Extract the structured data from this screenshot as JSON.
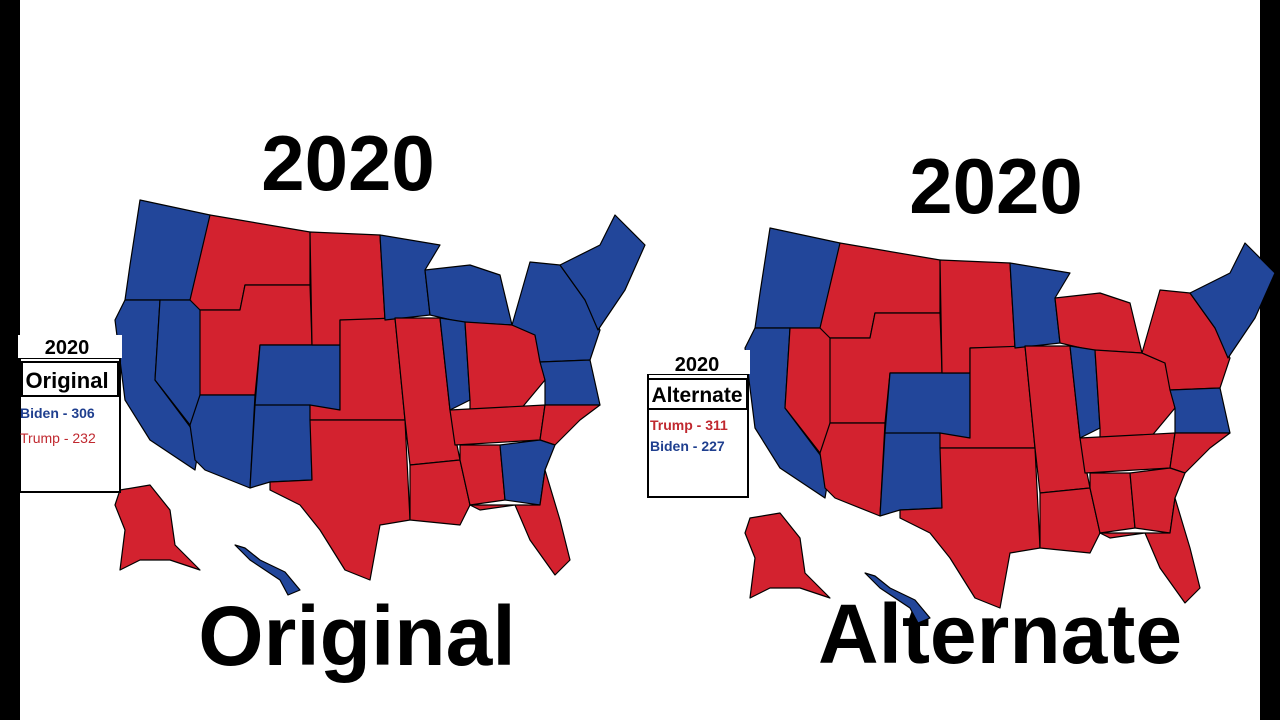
{
  "left": {
    "title": "2020",
    "caption": "Original",
    "legend": {
      "year": "2020",
      "name": "Original",
      "lines": [
        "Biden - 306",
        "Trump - 232"
      ]
    }
  },
  "right": {
    "title": "2020",
    "caption": "Alternate",
    "legend": {
      "year": "2020",
      "name": "Alternate",
      "lines": [
        "Trump - 311",
        "Biden - 227"
      ]
    }
  }
}
